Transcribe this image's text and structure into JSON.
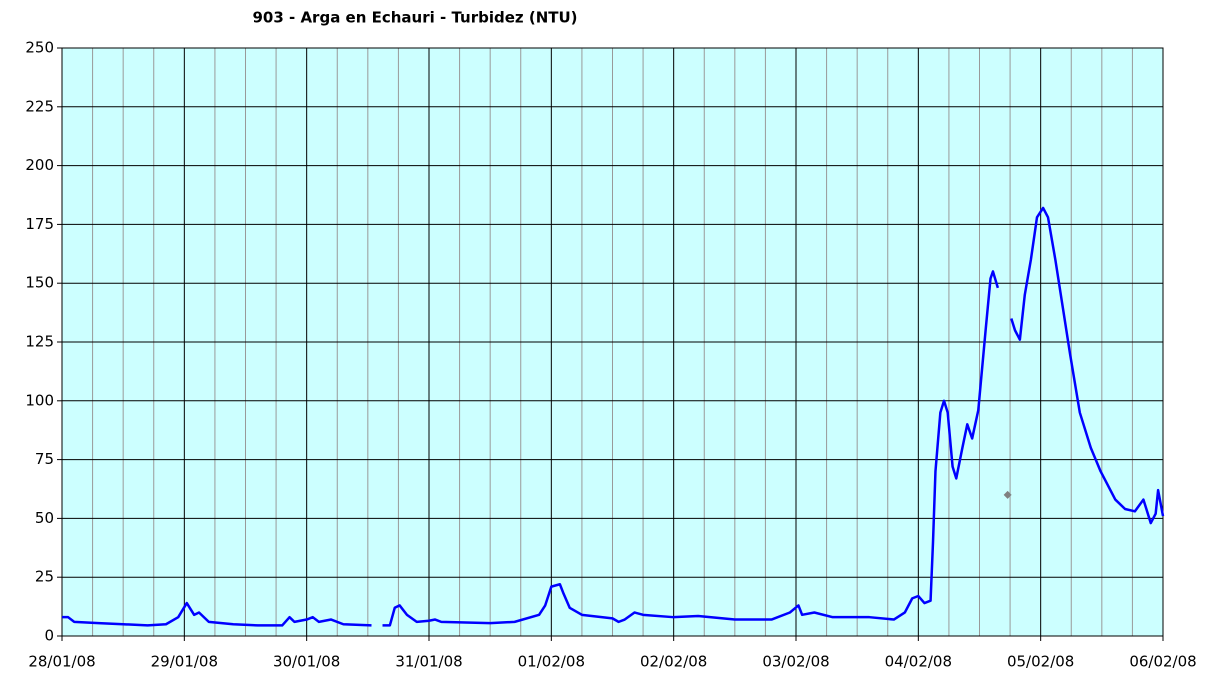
{
  "chart_data": {
    "type": "line",
    "title": "903 - Arga en Echauri - Turbidez (NTU)",
    "xlim": [
      0,
      9
    ],
    "xticks": [
      {
        "value": 0,
        "label": "28/01/08"
      },
      {
        "value": 1,
        "label": "29/01/08"
      },
      {
        "value": 2,
        "label": "30/01/08"
      },
      {
        "value": 3,
        "label": "31/01/08"
      },
      {
        "value": 4,
        "label": "01/02/08"
      },
      {
        "value": 5,
        "label": "02/02/08"
      },
      {
        "value": 6,
        "label": "03/02/08"
      },
      {
        "value": 7,
        "label": "04/02/08"
      },
      {
        "value": 8,
        "label": "05/02/08"
      },
      {
        "value": 9,
        "label": "06/02/08"
      }
    ],
    "ylim": [
      0,
      250
    ],
    "yticks": [
      0,
      25,
      50,
      75,
      100,
      125,
      150,
      175,
      200,
      225,
      250
    ],
    "grid": true,
    "background": "#ccffff",
    "series": [
      {
        "color": "#0000ff",
        "x": [
          0,
          0.05,
          0.1,
          0.3,
          0.5,
          0.7,
          0.85,
          0.95,
          1.02,
          1.08,
          1.12,
          1.2,
          1.4,
          1.6,
          1.8,
          1.86,
          1.9,
          2.0,
          2.05,
          2.1,
          2.2,
          2.3,
          2.53,
          2.56,
          2.62,
          2.68,
          2.72,
          2.76,
          2.82,
          2.9,
          3.0,
          3.05,
          3.1,
          3.5,
          3.7,
          3.9,
          3.95,
          4.0,
          4.07,
          4.1,
          4.15,
          4.25,
          4.5,
          4.55,
          4.6,
          4.68,
          4.75,
          5.0,
          5.2,
          5.5,
          5.8,
          5.95,
          6.02,
          6.05,
          6.15,
          6.3,
          6.6,
          6.8,
          6.89,
          6.95,
          7.0,
          7.05,
          7.1,
          7.12,
          7.14,
          7.18,
          7.21,
          7.24,
          7.28,
          7.31,
          7.36,
          7.4,
          7.44,
          7.49,
          7.55,
          7.59,
          7.61,
          7.65,
          7.7,
          7.76,
          7.79,
          7.83,
          7.87,
          7.92,
          7.97,
          8.02,
          8.06,
          8.12,
          8.18,
          8.24,
          8.32,
          8.41,
          8.49,
          8.61,
          8.69,
          8.77,
          8.84,
          8.9,
          8.94,
          8.96,
          9.0
        ],
        "values": [
          8,
          8,
          6,
          5.5,
          5,
          4.5,
          5,
          8,
          14,
          9,
          10,
          6,
          5,
          4.5,
          4.5,
          8,
          6,
          7,
          8,
          6,
          7,
          5,
          4.5,
          null,
          4.5,
          4.5,
          12,
          13,
          9,
          6,
          6.5,
          7,
          6,
          5.5,
          6,
          9,
          13,
          21,
          22,
          18,
          12,
          9,
          7.5,
          6,
          7,
          10,
          9,
          8,
          8.5,
          7,
          7,
          10,
          13,
          9,
          10,
          8,
          8,
          7,
          10,
          16,
          17,
          14,
          15,
          40,
          70,
          95,
          100,
          95,
          72,
          67,
          80,
          90,
          84,
          96,
          130,
          152,
          155,
          148,
          null,
          135,
          130,
          126,
          145,
          160,
          178,
          182,
          178,
          160,
          140,
          120,
          95,
          80,
          70,
          58,
          54,
          53,
          58,
          48,
          52,
          62,
          51
        ]
      },
      {
        "color": "#808080",
        "marker": "diamond",
        "x": [
          7.73
        ],
        "values": [
          60
        ]
      }
    ]
  }
}
